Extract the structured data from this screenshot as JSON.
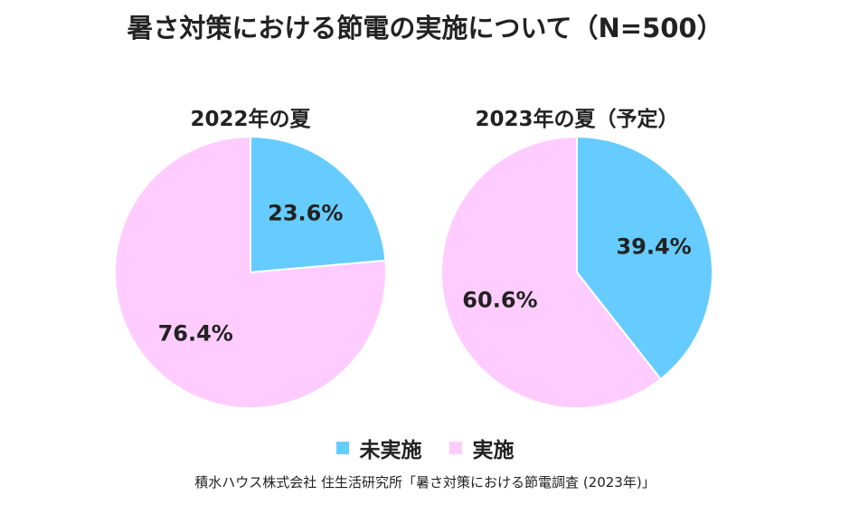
{
  "title": "暑さ対策における節電の実施について（N=500）",
  "chart_data": [
    {
      "type": "pie",
      "title": "2022年の夏",
      "categories": [
        "未実施",
        "実施"
      ],
      "values": [
        23.6,
        76.4
      ],
      "labels": [
        "23.6%",
        "76.4%"
      ]
    },
    {
      "type": "pie",
      "title": "2023年の夏（予定）",
      "categories": [
        "未実施",
        "実施"
      ],
      "values": [
        39.4,
        60.6
      ],
      "labels": [
        "39.4%",
        "60.6%"
      ]
    }
  ],
  "legend": [
    {
      "label": "未実施",
      "color": "#66CCFF"
    },
    {
      "label": "実施",
      "color": "#FFCCFF"
    }
  ],
  "source": "積水ハウス株式会社 住生活研究所「暑さ対策における節電調査 (2023年)」"
}
